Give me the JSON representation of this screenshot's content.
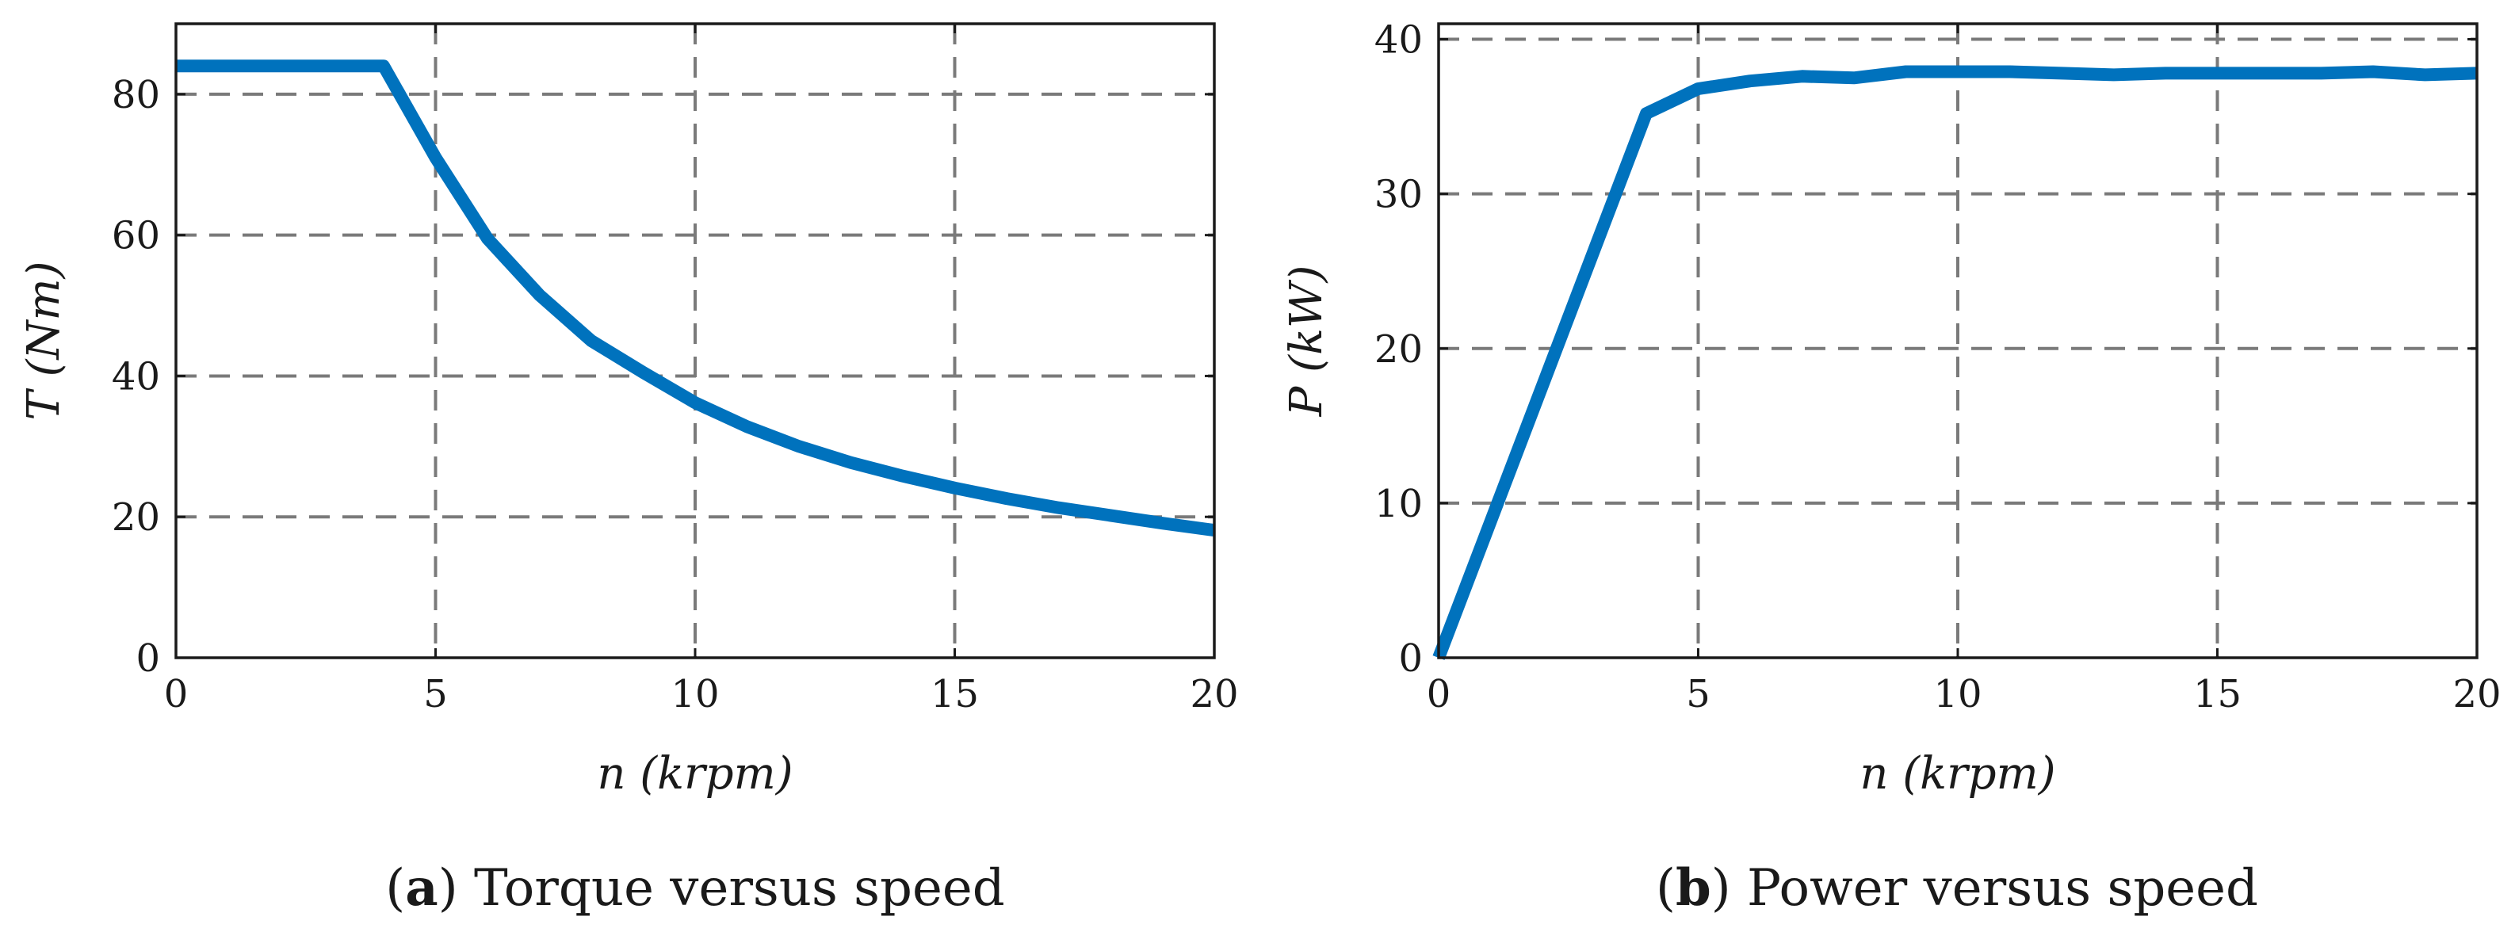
{
  "colors": {
    "series": "#0072BD",
    "grid": "#7a7a7a",
    "axis": "#1a1a1a"
  },
  "chart_data": [
    {
      "type": "line",
      "panel_letter": "a",
      "caption": " Torque versus speed",
      "caption_open": "(",
      "caption_close": ")",
      "xlabel": "n (krpm)",
      "ylabel": "T (Nm)",
      "xlim": [
        0,
        20
      ],
      "ylim": [
        0,
        90
      ],
      "xticks": [
        0,
        5,
        10,
        15,
        20
      ],
      "yticks": [
        0,
        20,
        40,
        60,
        80
      ],
      "xtick_labels": [
        "0",
        "5",
        "10",
        "15",
        "20"
      ],
      "ytick_labels": [
        "0",
        "20",
        "40",
        "60",
        "80"
      ],
      "grid": true,
      "series": [
        {
          "name": "Torque",
          "x": [
            0,
            1,
            2,
            3,
            4,
            5,
            6,
            7,
            8,
            9,
            10,
            11,
            12,
            13,
            14,
            15,
            16,
            17,
            18,
            19,
            20
          ],
          "y": [
            84,
            84,
            84,
            84,
            84,
            71,
            59.5,
            51.5,
            45,
            40.5,
            36.2,
            32.8,
            30,
            27.7,
            25.8,
            24.1,
            22.6,
            21.3,
            20.2,
            19.1,
            18.1
          ]
        }
      ]
    },
    {
      "type": "line",
      "panel_letter": "b",
      "caption": " Power versus speed",
      "caption_open": "(",
      "caption_close": ")",
      "xlabel": "n (krpm)",
      "ylabel": "P (kW)",
      "xlim": [
        0,
        20
      ],
      "ylim": [
        0,
        41
      ],
      "xticks": [
        0,
        5,
        10,
        15,
        20
      ],
      "yticks": [
        0,
        10,
        20,
        30,
        40
      ],
      "xtick_labels": [
        "0",
        "5",
        "10",
        "15",
        "20"
      ],
      "ytick_labels": [
        "0",
        "10",
        "20",
        "30",
        "40"
      ],
      "grid": true,
      "series": [
        {
          "name": "Power",
          "x": [
            0,
            1,
            2,
            3,
            4,
            5,
            6,
            7,
            8,
            9,
            10,
            11,
            12,
            13,
            14,
            15,
            16,
            17,
            18,
            19,
            20
          ],
          "y": [
            0,
            8.8,
            17.6,
            26.4,
            35.2,
            36.8,
            37.3,
            37.6,
            37.5,
            37.9,
            37.9,
            37.9,
            37.8,
            37.7,
            37.8,
            37.8,
            37.8,
            37.8,
            37.9,
            37.7,
            37.8
          ]
        }
      ]
    }
  ]
}
